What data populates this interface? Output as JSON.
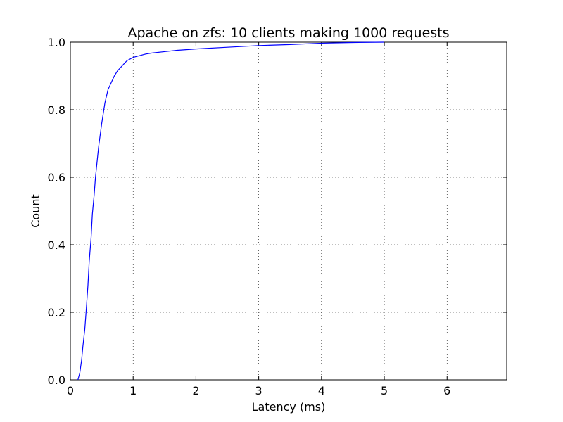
{
  "chart_data": {
    "type": "line",
    "title": "Apache on zfs: 10 clients making 1000 requests",
    "xlabel": "Latency (ms)",
    "ylabel": "Count",
    "xlim": [
      0,
      6.95
    ],
    "ylim": [
      0,
      1.0
    ],
    "x_ticks": [
      0,
      1,
      2,
      3,
      4,
      5,
      6
    ],
    "x_tick_labels": [
      "0",
      "1",
      "2",
      "3",
      "4",
      "5",
      "6"
    ],
    "y_ticks": [
      0.0,
      0.2,
      0.4,
      0.6,
      0.8,
      1.0
    ],
    "y_tick_labels": [
      "0.0",
      "0.2",
      "0.4",
      "0.6",
      "0.8",
      "1.0"
    ],
    "grid": true,
    "line_color": "#0000ff",
    "series": [
      {
        "x": [
          0.12,
          0.15,
          0.18,
          0.2,
          0.23,
          0.25,
          0.28,
          0.3,
          0.33,
          0.35,
          0.38,
          0.4,
          0.45,
          0.5,
          0.55,
          0.6,
          0.65,
          0.7,
          0.75,
          0.8,
          0.85,
          0.9,
          0.95,
          1.0,
          1.1,
          1.2,
          1.3,
          1.5,
          1.7,
          2.0,
          2.5,
          3.0,
          3.5,
          4.0,
          4.5,
          5.0
        ],
        "y": [
          0.0,
          0.02,
          0.06,
          0.1,
          0.15,
          0.2,
          0.28,
          0.35,
          0.42,
          0.49,
          0.55,
          0.6,
          0.69,
          0.76,
          0.82,
          0.86,
          0.88,
          0.9,
          0.915,
          0.925,
          0.935,
          0.945,
          0.95,
          0.955,
          0.96,
          0.965,
          0.968,
          0.972,
          0.976,
          0.98,
          0.985,
          0.99,
          0.993,
          0.997,
          0.999,
          1.0
        ]
      }
    ]
  }
}
